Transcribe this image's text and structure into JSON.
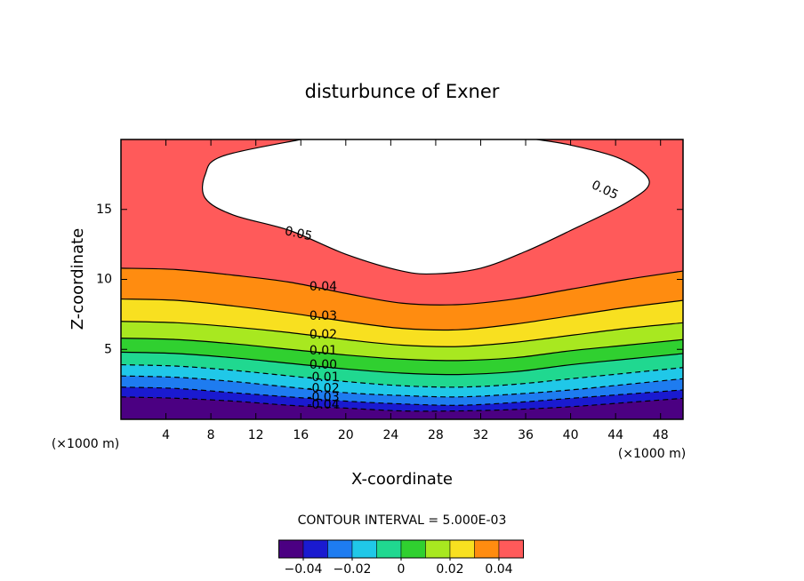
{
  "chart_data": {
    "type": "contour",
    "title": "disturbunce of Exner",
    "xlabel": "X-coordinate",
    "ylabel": "Z-coordinate",
    "x_unit": "(×1000 m)",
    "y_unit": "(×1000 m)",
    "xlim": [
      0,
      50
    ],
    "ylim": [
      0,
      20
    ],
    "xticks": [
      4,
      8,
      12,
      16,
      20,
      24,
      28,
      32,
      36,
      40,
      44,
      48
    ],
    "yticks": [
      5,
      10,
      15
    ],
    "x": [
      0,
      5,
      10,
      15,
      20,
      25,
      30,
      35,
      40,
      45,
      50
    ],
    "below_color": "#4b0082",
    "series": [
      {
        "name": "-0.04",
        "level": -0.04,
        "color": "#1a1ad0",
        "values": [
          1.6,
          1.5,
          1.3,
          1.0,
          0.8,
          0.6,
          0.6,
          0.7,
          0.9,
          1.2,
          1.5
        ]
      },
      {
        "name": "-0.03",
        "level": -0.03,
        "color": "#1e7cf0",
        "values": [
          2.3,
          2.2,
          1.9,
          1.6,
          1.3,
          1.1,
          1.0,
          1.2,
          1.5,
          1.8,
          2.1
        ]
      },
      {
        "name": "-0.02",
        "level": -0.02,
        "color": "#20c8e8",
        "values": [
          3.1,
          3.0,
          2.7,
          2.3,
          1.9,
          1.7,
          1.6,
          1.8,
          2.1,
          2.5,
          2.9
        ]
      },
      {
        "name": "-0.01",
        "level": -0.01,
        "color": "#20d890",
        "values": [
          3.9,
          3.8,
          3.5,
          3.1,
          2.7,
          2.4,
          2.3,
          2.5,
          2.9,
          3.3,
          3.7
        ]
      },
      {
        "name": "0.00",
        "level": 0,
        "color": "#30d030",
        "values": [
          4.8,
          4.7,
          4.4,
          4.0,
          3.6,
          3.3,
          3.2,
          3.4,
          3.9,
          4.3,
          4.7
        ]
      },
      {
        "name": "0.01",
        "level": 0.01,
        "color": "#a8e820",
        "values": [
          5.8,
          5.7,
          5.4,
          5.0,
          4.6,
          4.3,
          4.2,
          4.4,
          4.9,
          5.3,
          5.7
        ]
      },
      {
        "name": "0.02",
        "level": 0.02,
        "color": "#f8e020",
        "values": [
          7.0,
          6.9,
          6.6,
          6.2,
          5.7,
          5.3,
          5.2,
          5.5,
          6.0,
          6.5,
          6.9
        ]
      },
      {
        "name": "0.03",
        "level": 0.03,
        "color": "#ff8c10",
        "values": [
          8.6,
          8.5,
          8.1,
          7.6,
          7.0,
          6.5,
          6.4,
          6.8,
          7.4,
          8.0,
          8.5
        ]
      },
      {
        "name": "0.04",
        "level": 0.04,
        "color": "#ff5a5a",
        "values": [
          10.8,
          10.7,
          10.3,
          9.8,
          9.0,
          8.3,
          8.2,
          8.6,
          9.3,
          10.0,
          10.6
        ]
      }
    ],
    "peak": {
      "name": "0.05",
      "level": 0.05,
      "color": "#ffffff",
      "x": [
        16,
        9,
        7.5,
        7.5,
        10,
        15,
        20,
        25,
        28,
        32,
        36,
        40,
        45,
        47,
        44.5,
        40,
        37
      ],
      "values": [
        20,
        18.8,
        17.5,
        15.8,
        14.6,
        13.5,
        11.8,
        10.6,
        10.4,
        10.8,
        12,
        13.5,
        15.5,
        17,
        18.6,
        19.6,
        20
      ]
    },
    "annotation": "CONTOUR INTERVAL = 5.000E-03",
    "colorbar": {
      "lim": [
        -0.05,
        0.05
      ],
      "ticks": [
        {
          "value": -0.04,
          "label": "−0.04"
        },
        {
          "value": -0.02,
          "label": "−0.02"
        },
        0,
        0.02,
        0.04
      ]
    }
  }
}
